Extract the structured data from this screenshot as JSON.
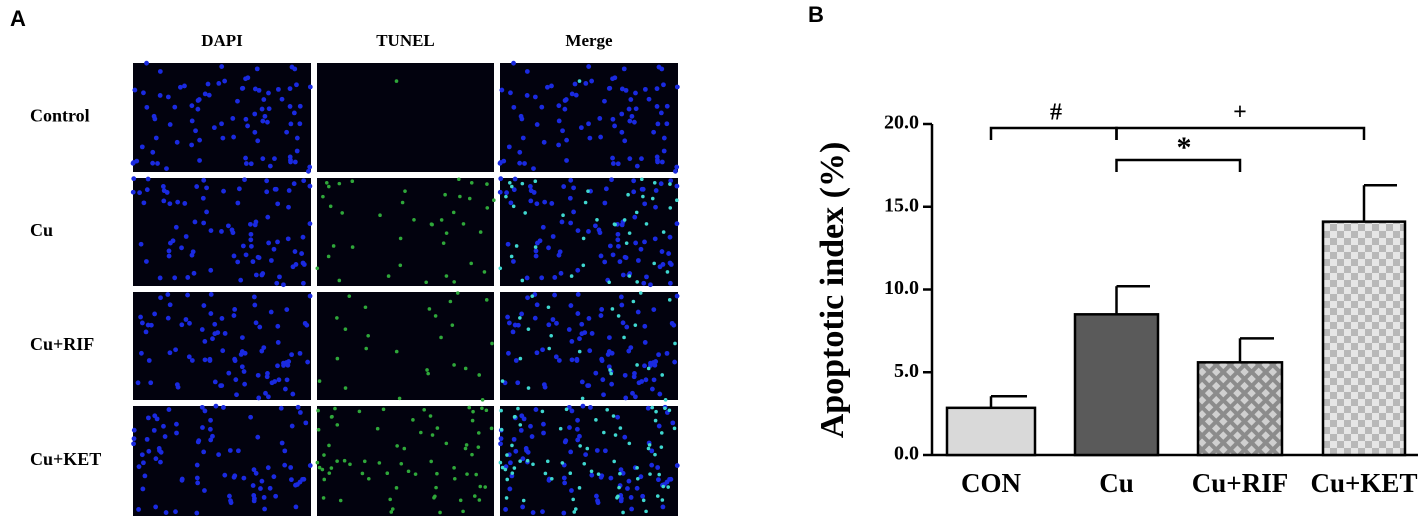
{
  "panel_a": {
    "label": "A",
    "columns": [
      "DAPI",
      "TUNEL",
      "Merge"
    ],
    "rows": [
      "Control",
      "Cu",
      "Cu+RIF",
      "Cu+KET"
    ]
  },
  "chart_data": {
    "type": "bar",
    "panel_label": "B",
    "y_label": "Apoptotic index (%)",
    "categories": [
      "CON",
      "Cu",
      "Cu+RIF",
      "Cu+KET"
    ],
    "values": [
      2.85,
      8.5,
      5.6,
      14.1
    ],
    "errors": [
      0.7,
      1.7,
      1.45,
      2.2
    ],
    "colors": [
      "#d9d9d9",
      "#5a5a5a",
      "#a6a6a6",
      "#c8c8c8"
    ],
    "patterns": [
      "solid",
      "solid",
      "diagonal-cross",
      "checker"
    ],
    "ylim": [
      0,
      20
    ],
    "yticks": [
      {
        "value": 0,
        "label": "0.0"
      },
      {
        "value": 5,
        "label": "5.0"
      },
      {
        "value": 10,
        "label": "10.0"
      },
      {
        "value": 15,
        "label": "15.0"
      },
      {
        "value": 20,
        "label": "20.0"
      }
    ],
    "annotations": [
      "#",
      "+",
      "*"
    ]
  }
}
